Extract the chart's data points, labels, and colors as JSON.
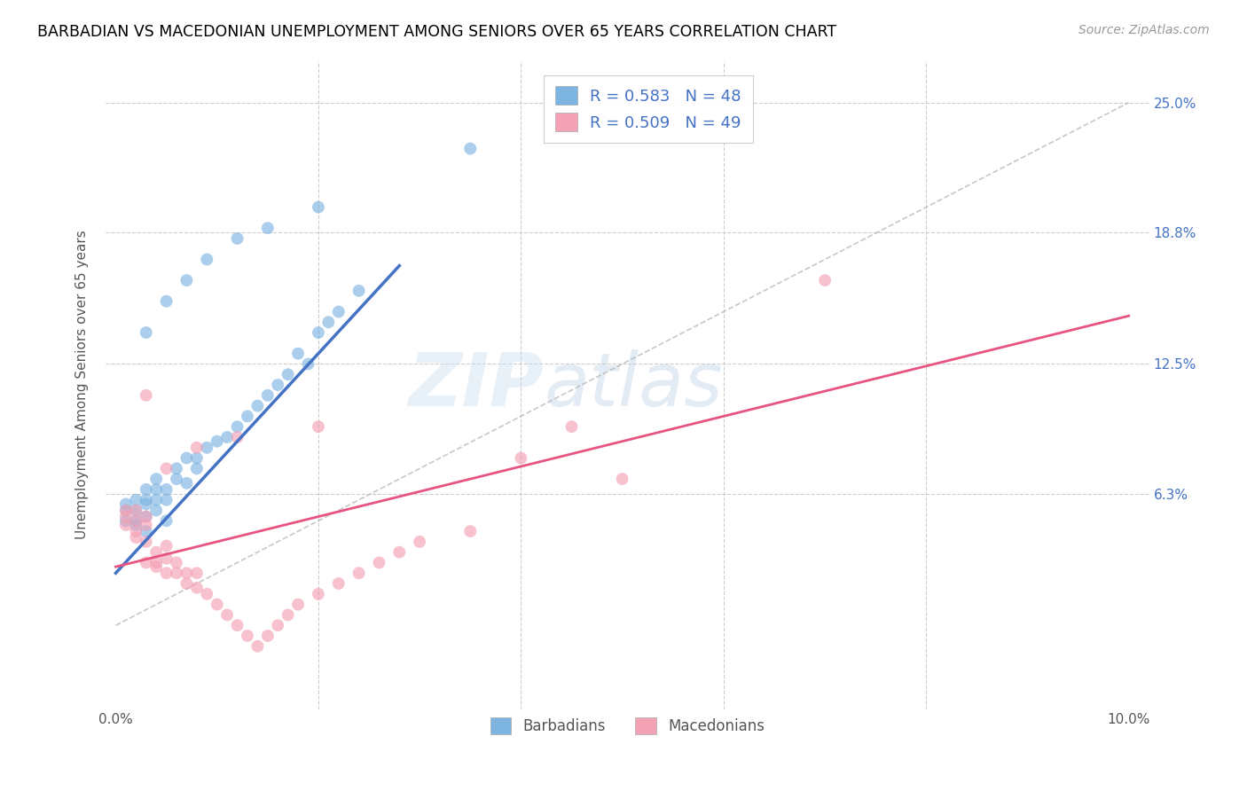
{
  "title": "BARBADIAN VS MACEDONIAN UNEMPLOYMENT AMONG SENIORS OVER 65 YEARS CORRELATION CHART",
  "source": "Source: ZipAtlas.com",
  "ylabel": "Unemployment Among Seniors over 65 years",
  "barbadian_color": "#7eb4e2",
  "macedonian_color": "#f4a0b5",
  "barbadian_line_color": "#4472c4",
  "macedonian_line_color": "#e75480",
  "barbadian_R": 0.583,
  "barbadian_N": 48,
  "macedonian_R": 0.509,
  "macedonian_N": 49,
  "watermark_text": "ZIPatlas",
  "right_yticks": [
    0.063,
    0.125,
    0.188,
    0.25
  ],
  "right_yticklabels": [
    "6.3%",
    "12.5%",
    "18.8%",
    "25.0%"
  ],
  "xlim": [
    -0.001,
    0.102
  ],
  "ylim": [
    -0.04,
    0.27
  ],
  "barbadian_x": [
    0.001,
    0.001,
    0.001,
    0.002,
    0.002,
    0.002,
    0.002,
    0.003,
    0.003,
    0.003,
    0.003,
    0.003,
    0.004,
    0.004,
    0.004,
    0.004,
    0.005,
    0.005,
    0.005,
    0.006,
    0.006,
    0.007,
    0.007,
    0.008,
    0.008,
    0.009,
    0.01,
    0.011,
    0.012,
    0.013,
    0.014,
    0.015,
    0.016,
    0.017,
    0.018,
    0.019,
    0.02,
    0.021,
    0.022,
    0.024,
    0.003,
    0.005,
    0.007,
    0.009,
    0.012,
    0.015,
    0.02,
    0.035
  ],
  "barbadian_y": [
    0.05,
    0.055,
    0.058,
    0.05,
    0.055,
    0.06,
    0.048,
    0.045,
    0.052,
    0.058,
    0.06,
    0.065,
    0.055,
    0.06,
    0.065,
    0.07,
    0.06,
    0.065,
    0.05,
    0.07,
    0.075,
    0.08,
    0.068,
    0.075,
    0.08,
    0.085,
    0.088,
    0.09,
    0.095,
    0.1,
    0.105,
    0.11,
    0.115,
    0.12,
    0.13,
    0.125,
    0.14,
    0.145,
    0.15,
    0.16,
    0.14,
    0.155,
    0.165,
    0.175,
    0.185,
    0.19,
    0.2,
    0.228
  ],
  "macedonian_x": [
    0.001,
    0.001,
    0.001,
    0.002,
    0.002,
    0.002,
    0.002,
    0.003,
    0.003,
    0.003,
    0.003,
    0.004,
    0.004,
    0.004,
    0.005,
    0.005,
    0.005,
    0.006,
    0.006,
    0.007,
    0.007,
    0.008,
    0.008,
    0.009,
    0.01,
    0.011,
    0.012,
    0.013,
    0.014,
    0.015,
    0.016,
    0.017,
    0.018,
    0.02,
    0.022,
    0.024,
    0.026,
    0.028,
    0.03,
    0.035,
    0.003,
    0.005,
    0.008,
    0.012,
    0.02,
    0.04,
    0.045,
    0.05,
    0.07
  ],
  "macedonian_y": [
    0.048,
    0.052,
    0.055,
    0.045,
    0.05,
    0.055,
    0.042,
    0.04,
    0.048,
    0.052,
    0.03,
    0.028,
    0.035,
    0.03,
    0.025,
    0.032,
    0.038,
    0.025,
    0.03,
    0.02,
    0.025,
    0.018,
    0.025,
    0.015,
    0.01,
    0.005,
    0.0,
    -0.005,
    -0.01,
    -0.005,
    0.0,
    0.005,
    0.01,
    0.015,
    0.02,
    0.025,
    0.03,
    0.035,
    0.04,
    0.045,
    0.11,
    0.075,
    0.085,
    0.09,
    0.095,
    0.08,
    0.095,
    0.07,
    0.165
  ]
}
